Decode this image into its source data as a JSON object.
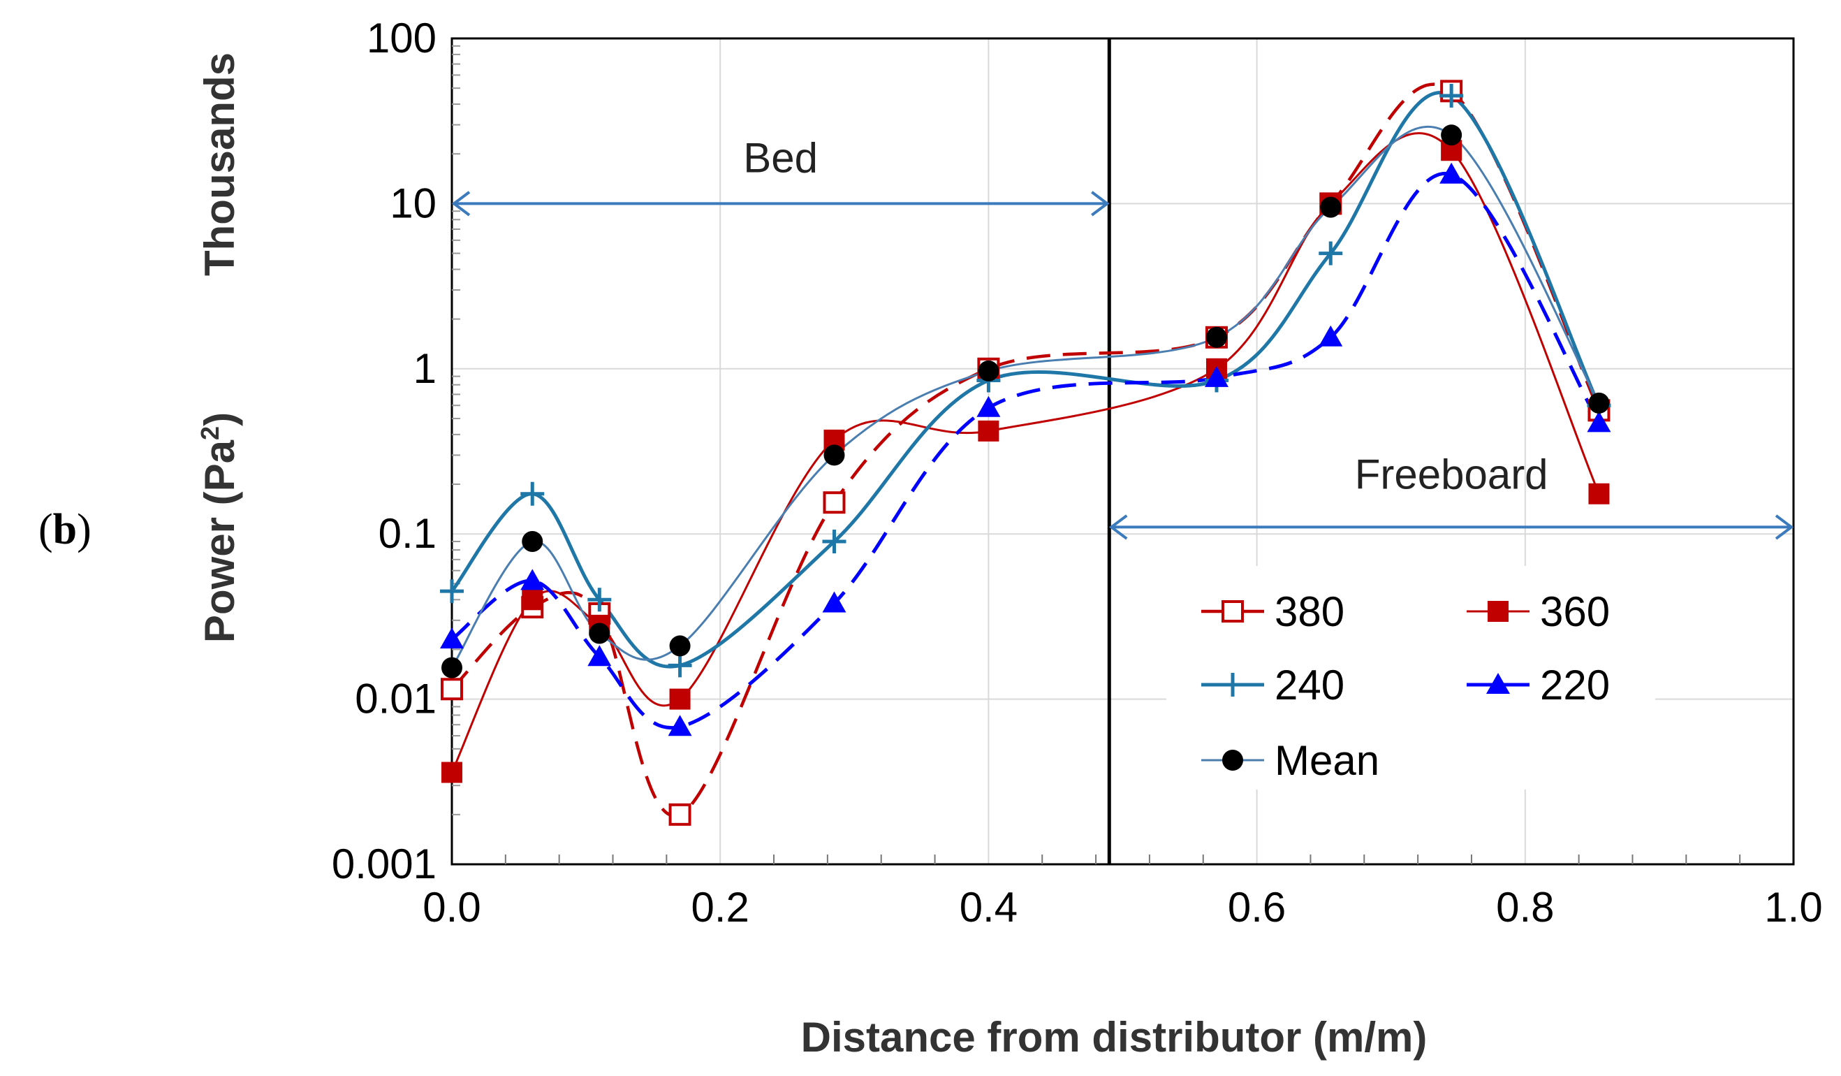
{
  "panel_label": {
    "open": "(",
    "letter": "b",
    "close": ")"
  },
  "chart_data": {
    "type": "line",
    "title": "",
    "xlabel": "Distance from distributor (m/m)",
    "ylabel_units_prefix": "Power (Pa",
    "ylabel_units_sup": "2",
    "ylabel_units_suffix": ")",
    "ylabel_multiplier": "Thousands",
    "y_scale": "log",
    "xlim": [
      0.0,
      1.0
    ],
    "ylim": [
      0.001,
      100
    ],
    "x_ticks": [
      0.0,
      0.2,
      0.4,
      0.6,
      0.8,
      1.0
    ],
    "x_tick_labels": [
      "0.0",
      "0.2",
      "0.4",
      "0.6",
      "0.8",
      "1.0"
    ],
    "y_ticks": [
      0.001,
      0.01,
      0.1,
      1,
      10,
      100
    ],
    "y_tick_labels": [
      "0.001",
      "0.01",
      "0.1",
      "1",
      "10",
      "100"
    ],
    "grid": true,
    "x": [
      0.0,
      0.06,
      0.11,
      0.17,
      0.285,
      0.4,
      0.57,
      0.655,
      0.745,
      0.855
    ],
    "series": [
      {
        "name": "380",
        "color": "#c00000",
        "dash": "dashed",
        "marker": "square-open",
        "values": [
          0.0115,
          0.036,
          0.033,
          0.002,
          0.155,
          1.0,
          1.55,
          10.0,
          48.0,
          0.56
        ]
      },
      {
        "name": "360",
        "color": "#c00000",
        "dash": "solid",
        "marker": "square-filled",
        "values": [
          0.0036,
          0.04,
          0.028,
          0.01,
          0.37,
          0.42,
          1.0,
          10.0,
          21.0,
          0.175
        ]
      },
      {
        "name": "240",
        "color": "#1f77a8",
        "dash": "solid",
        "marker": "plus",
        "values": [
          0.045,
          0.175,
          0.04,
          0.016,
          0.09,
          0.85,
          0.85,
          5.0,
          45.0,
          0.6
        ]
      },
      {
        "name": "220",
        "color": "#0000ff",
        "dash": "dashed",
        "marker": "triangle-filled",
        "values": [
          0.023,
          0.052,
          0.018,
          0.0068,
          0.038,
          0.58,
          0.88,
          1.55,
          15.0,
          0.47
        ]
      },
      {
        "name": "Mean",
        "color": "#4a7eb0",
        "dash": "solid",
        "marker": "circle-filled",
        "values": [
          0.0155,
          0.09,
          0.025,
          0.021,
          0.3,
          0.97,
          1.55,
          9.5,
          26.0,
          0.62
        ]
      }
    ],
    "divider_x": 0.49,
    "annotations": [
      {
        "text": "Bed",
        "from_x": 0.0,
        "to_x": 0.49,
        "at_y": 10
      },
      {
        "text": "Freeboard",
        "from_x": 0.49,
        "to_x": 1.0,
        "at_y": 0.11
      }
    ],
    "legend": {
      "position": "lower-right",
      "columns": 2
    }
  }
}
